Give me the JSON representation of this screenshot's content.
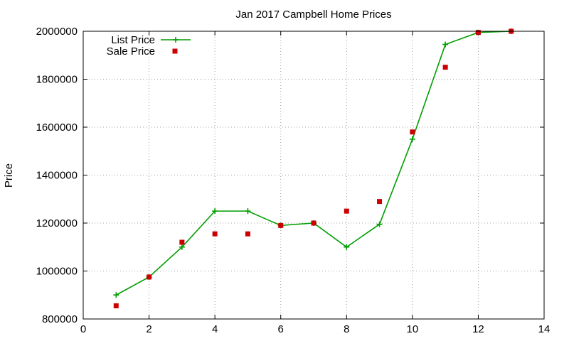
{
  "chart_data": {
    "type": "line",
    "title": "Jan 2017 Campbell Home Prices",
    "xlabel": "",
    "ylabel": "Price",
    "xlim": [
      0,
      14
    ],
    "ylim": [
      800000,
      2000000
    ],
    "xticks": [
      "0",
      "2",
      "4",
      "6",
      "8",
      "10",
      "12",
      "14"
    ],
    "yticks": [
      "800000",
      "1000000",
      "1200000",
      "1400000",
      "1600000",
      "1800000",
      "2000000"
    ],
    "grid": true,
    "legend_position": "top-left",
    "series": [
      {
        "name": "List Price",
        "style": "line-with-plus-markers",
        "color": "#009e00",
        "x": [
          1,
          2,
          3,
          4,
          5,
          6,
          7,
          8,
          9,
          10,
          11,
          12,
          13
        ],
        "y": [
          900000,
          975000,
          1100000,
          1250000,
          1250000,
          1190000,
          1200000,
          1100000,
          1195000,
          1550000,
          1945000,
          1995000,
          2000000
        ]
      },
      {
        "name": "Sale Price",
        "style": "square-markers",
        "color": "#cc0000",
        "x": [
          1,
          2,
          3,
          4,
          5,
          6,
          7,
          8,
          9,
          10,
          11,
          12,
          13
        ],
        "y": [
          855000,
          975000,
          1120000,
          1155000,
          1155000,
          1190000,
          1200000,
          1250000,
          1290000,
          1580000,
          1850000,
          1995000,
          2000000
        ]
      }
    ]
  }
}
